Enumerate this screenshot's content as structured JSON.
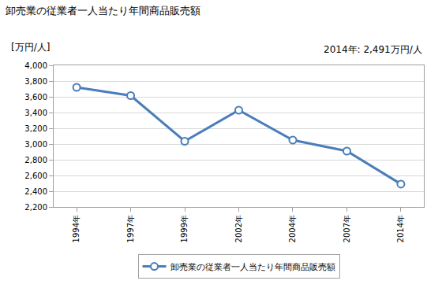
{
  "chart_data": {
    "type": "line",
    "title": "卸売業の従業者一人当たり年間商品販売額",
    "ylabel": "[万円/人]",
    "annotations": [
      {
        "text": "2014年: 2,491万円/人"
      }
    ],
    "categories": [
      "1994年",
      "1997年",
      "1999年",
      "2002年",
      "2004年",
      "2007年",
      "2014年"
    ],
    "series": [
      {
        "name": "卸売業の従業者一人当たり年間商品販売額",
        "color": "#4a7ebb",
        "marker": "circle-open",
        "values": [
          3720,
          3615,
          3035,
          3430,
          3050,
          2910,
          2491
        ]
      }
    ],
    "ylim": [
      2200,
      4000
    ],
    "yticks": [
      {
        "value": 2200,
        "label": "2,200"
      },
      {
        "value": 2400,
        "label": "2,400"
      },
      {
        "value": 2600,
        "label": "2,600"
      },
      {
        "value": 2800,
        "label": "2,800"
      },
      {
        "value": 3000,
        "label": "3,000"
      },
      {
        "value": 3200,
        "label": "3,200"
      },
      {
        "value": 3400,
        "label": "3,400"
      },
      {
        "value": 3600,
        "label": "3,600"
      },
      {
        "value": 3800,
        "label": "3,800"
      },
      {
        "value": 4000,
        "label": "4,000"
      }
    ],
    "grid": true,
    "legend": "bottom"
  }
}
